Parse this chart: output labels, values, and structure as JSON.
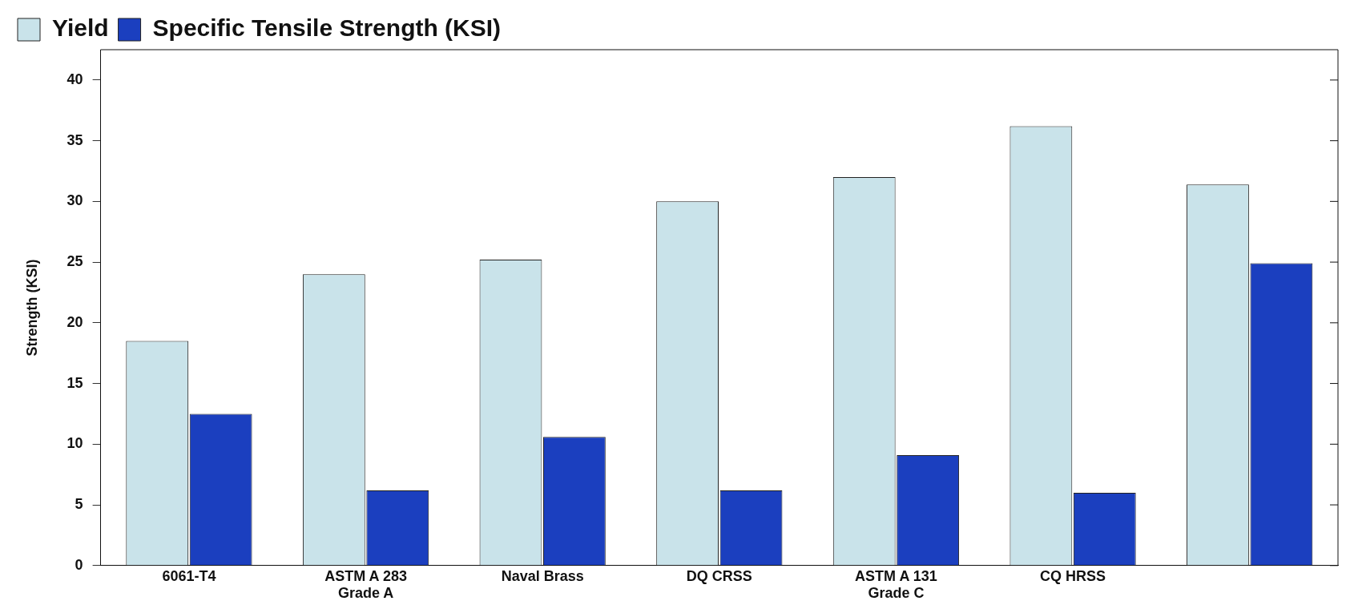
{
  "chart_data": {
    "type": "bar",
    "ylabel": "Strength (KSI)",
    "categories": [
      "6061-T4",
      "ASTM A 283\nGrade A",
      "Naval Brass",
      "DQ CRSS",
      "ASTM A 131\nGrade C",
      "CQ HRSS",
      null
    ],
    "series": [
      {
        "name": "Yield",
        "color": "#c9e3ea",
        "values": [
          18.5,
          24,
          25.2,
          30,
          32,
          36.2,
          31.4
        ]
      },
      {
        "name": "Specific Tensile Strength (KSI)",
        "color": "#1b3fbf",
        "values": [
          12.5,
          6.2,
          10.6,
          6.2,
          9.1,
          6,
          24.9
        ]
      }
    ],
    "ylim": [
      0,
      42.5
    ],
    "yticks": [
      0,
      5,
      10,
      15,
      20,
      25,
      30,
      35,
      40
    ],
    "grid": false,
    "legend": "top left"
  }
}
